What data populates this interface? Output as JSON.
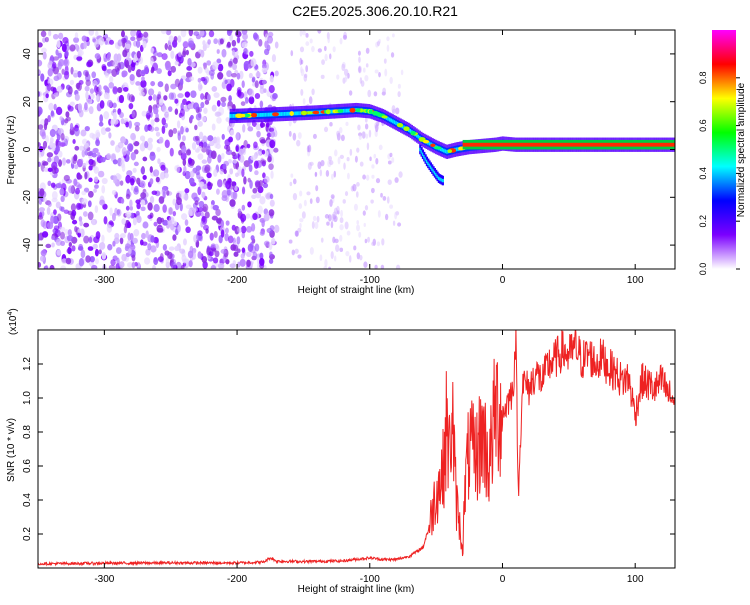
{
  "figure": {
    "title": "C2E5.2025.306.20.10.R21"
  },
  "chart_data": [
    {
      "type": "heatmap",
      "xlabel": "Height of straight line (km)",
      "ylabel": "Frequency (Hz)",
      "xlim": [
        -350,
        130
      ],
      "ylim": [
        -50,
        50
      ],
      "x_ticks": [
        -300,
        -200,
        -100,
        0,
        100
      ],
      "y_ticks": [
        -40,
        -20,
        0,
        20,
        40
      ],
      "grid": false,
      "colorbar": {
        "label": "Normalized spectral amplitude",
        "range": [
          0,
          1
        ],
        "ticks": [
          "0.0",
          "0.2",
          "0.4",
          "0.6",
          "0.8"
        ],
        "colormap": [
          "#ffffff",
          "#7b00ff",
          "#0000ff",
          "#00ffff",
          "#00ff00",
          "#ffff00",
          "#ff0000",
          "#ff00ff"
        ]
      },
      "ridge": {
        "x": [
          -205,
          -180,
          -160,
          -140,
          -125,
          -110,
          -100,
          -90,
          -80,
          -70,
          -60,
          -50,
          -42,
          -35,
          -25,
          -15,
          -5,
          0,
          10,
          30,
          60,
          100,
          130
        ],
        "y": [
          14,
          14.5,
          15,
          15.5,
          16,
          16.5,
          16,
          14,
          11,
          8,
          4,
          1,
          -1,
          0,
          1,
          1.5,
          2,
          2.5,
          2,
          2,
          2,
          2,
          2
        ]
      },
      "drop_branch": {
        "x": [
          -62,
          -57,
          -52,
          -48,
          -45
        ],
        "y": [
          0,
          -5,
          -9,
          -12,
          -13
        ]
      }
    },
    {
      "type": "line",
      "xlabel": "Height of straight line (km)",
      "ylabel": "SNR (10 * v/v)",
      "y_multiplier": "(x10",
      "y_multiplier_exp": "4",
      "y_multiplier_close": ")",
      "xlim": [
        -350,
        130
      ],
      "ylim": [
        0,
        14000
      ],
      "x_ticks": [
        -300,
        -200,
        -100,
        0,
        100
      ],
      "y_ticks": [
        {
          "value": 2000,
          "label": "0.2"
        },
        {
          "value": 4000,
          "label": "0.4"
        },
        {
          "value": 6000,
          "label": "0.6"
        },
        {
          "value": 8000,
          "label": "0.8"
        },
        {
          "value": 10000,
          "label": "1.0"
        },
        {
          "value": 12000,
          "label": "1.2"
        }
      ],
      "grid": false,
      "series": [
        {
          "color": "#ee2222",
          "x": [
            -350,
            -300,
            -250,
            -200,
            -180,
            -175,
            -170,
            -150,
            -120,
            -100,
            -90,
            -80,
            -70,
            -60,
            -55,
            -50,
            -45,
            -42,
            -40,
            -38,
            -35,
            -33,
            -30,
            -28,
            -25,
            -20,
            -15,
            -10,
            -5,
            0,
            5,
            8,
            10,
            12,
            15,
            20,
            25,
            30,
            35,
            40,
            45,
            50,
            55,
            60,
            65,
            70,
            75,
            80,
            85,
            90,
            95,
            100,
            105,
            110,
            115,
            120,
            125,
            130
          ],
          "y": [
            250,
            280,
            300,
            300,
            350,
            600,
            400,
            380,
            420,
            600,
            500,
            500,
            700,
            1200,
            2500,
            4500,
            5500,
            8500,
            6500,
            9500,
            4000,
            3000,
            1000,
            5000,
            7000,
            6500,
            8000,
            6000,
            9500,
            9000,
            10000,
            10500,
            13800,
            4000,
            11000,
            10500,
            11500,
            11000,
            12000,
            12300,
            12800,
            12500,
            13000,
            12200,
            12600,
            12000,
            12400,
            11800,
            11500,
            11000,
            11200,
            9000,
            11000,
            10800,
            10500,
            11000,
            10200,
            9800
          ]
        }
      ]
    }
  ]
}
